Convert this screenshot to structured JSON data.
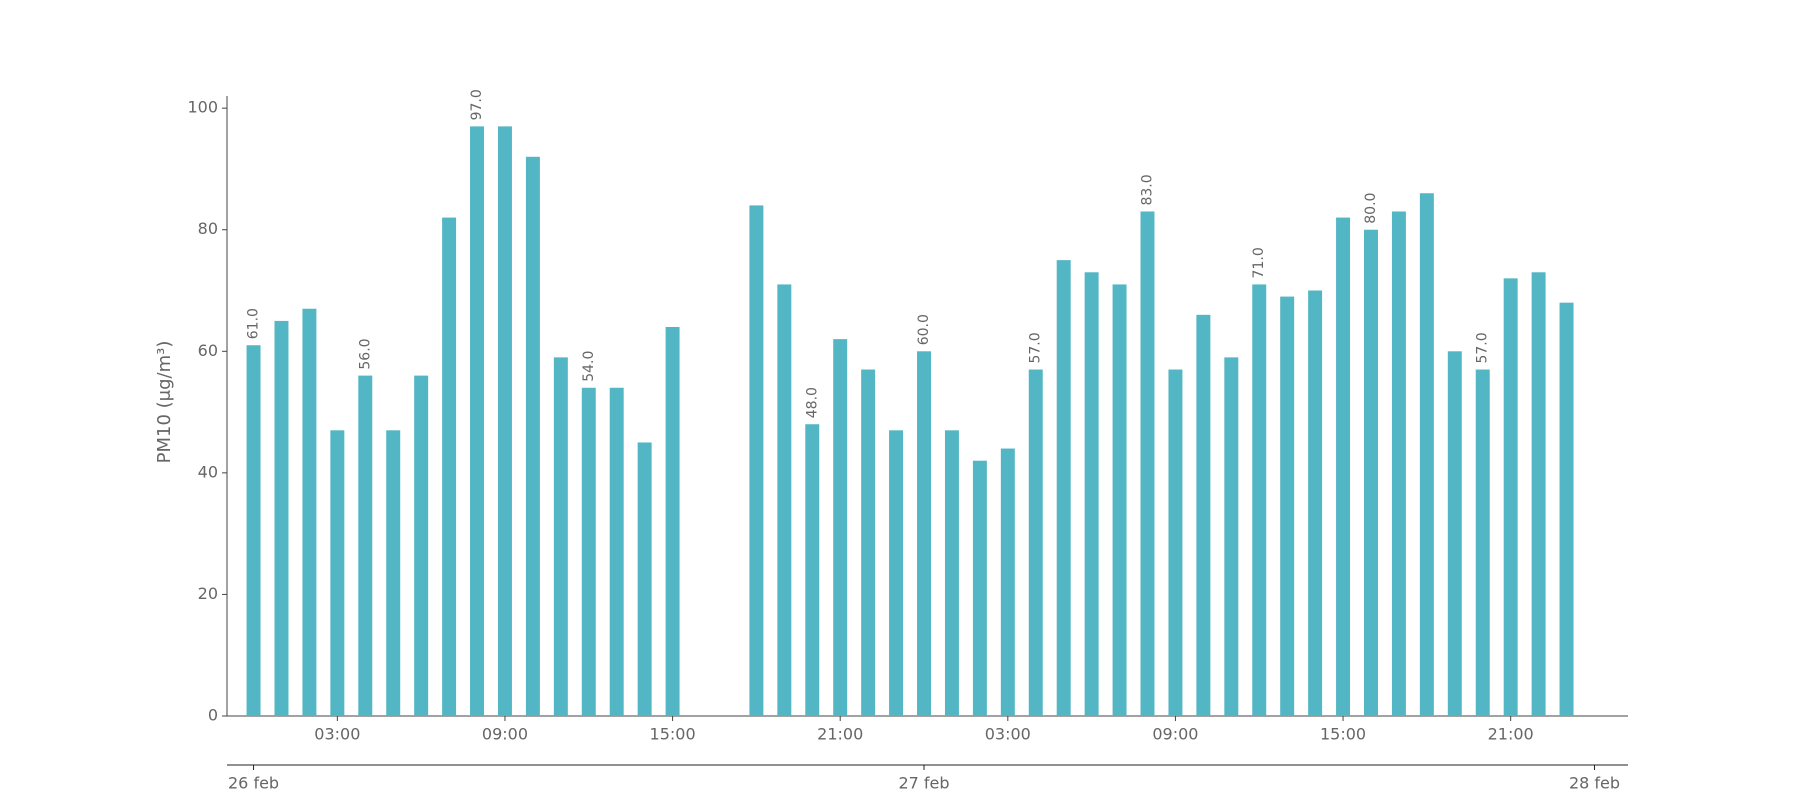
{
  "chart_data": {
    "type": "bar",
    "ylabel": "PM10 (μg/m³)",
    "x": [
      0,
      1,
      2,
      3,
      4,
      5,
      6,
      7,
      8,
      9,
      10,
      11,
      12,
      13,
      14,
      15,
      18,
      19,
      20,
      21,
      22,
      23,
      24,
      25,
      26,
      27,
      28,
      29,
      30,
      31,
      32,
      33,
      34,
      35,
      36,
      37,
      38,
      39,
      40,
      41,
      42,
      43,
      44,
      45,
      46,
      47
    ],
    "values": [
      61,
      65,
      67,
      47,
      56,
      47,
      56,
      82,
      97,
      97,
      92,
      59,
      54,
      54,
      45,
      64,
      84,
      71,
      48,
      62,
      57,
      47,
      60,
      47,
      42,
      44,
      57,
      75,
      73,
      71,
      83,
      57,
      66,
      59,
      71,
      69,
      70,
      82,
      80,
      83,
      86,
      60,
      57,
      72,
      73,
      68
    ],
    "value_labels": [
      "61.0",
      null,
      null,
      null,
      "56.0",
      null,
      null,
      null,
      "97.0",
      null,
      null,
      null,
      "54.0",
      null,
      null,
      null,
      null,
      null,
      "48.0",
      null,
      null,
      null,
      "60.0",
      null,
      null,
      null,
      "57.0",
      null,
      null,
      null,
      "83.0",
      null,
      null,
      null,
      "71.0",
      null,
      null,
      null,
      "80.0",
      null,
      null,
      null,
      "57.0",
      null,
      null,
      null
    ],
    "color": "#52b6c4",
    "xlim": [
      -0.95,
      49.2
    ],
    "xticks": [
      {
        "value": 3,
        "label": "03:00"
      },
      {
        "value": 9,
        "label": "09:00"
      },
      {
        "value": 15,
        "label": "15:00"
      },
      {
        "value": 21,
        "label": "21:00"
      },
      {
        "value": 27,
        "label": "03:00"
      },
      {
        "value": 33,
        "label": "09:00"
      },
      {
        "value": 39,
        "label": "15:00"
      },
      {
        "value": 45,
        "label": "21:00"
      }
    ],
    "date_ticks": [
      {
        "value": 0,
        "label": "26 feb"
      },
      {
        "value": 24,
        "label": "27 feb"
      },
      {
        "value": 48,
        "label": "28 feb"
      }
    ],
    "ylim": [
      0,
      102
    ],
    "yticks": [
      0,
      20,
      40,
      60,
      80,
      100
    ],
    "grid": false
  }
}
